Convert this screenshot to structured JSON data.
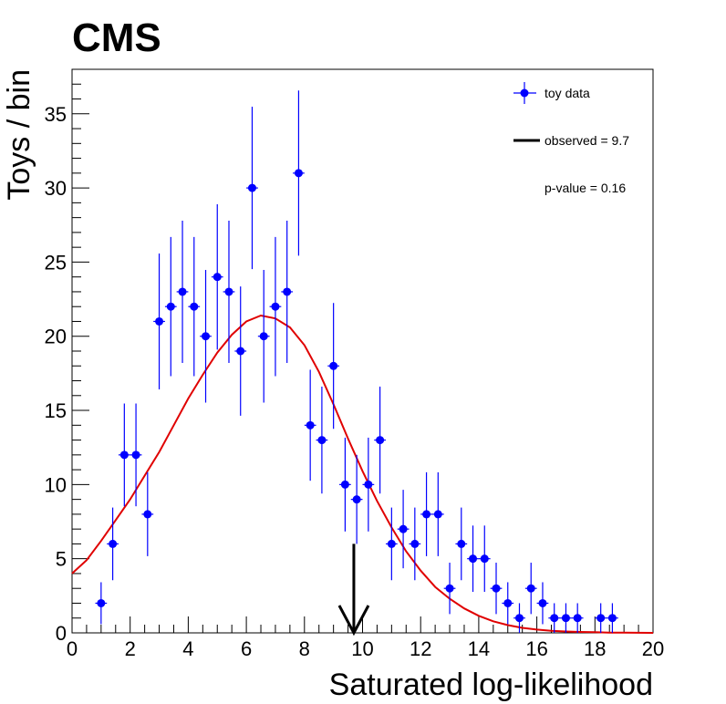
{
  "header": {
    "experiment_label": "CMS"
  },
  "legend": {
    "entries": [
      {
        "label": "toy data"
      },
      {
        "label": "observed = 9.7"
      },
      {
        "label": "p-value = 0.16"
      }
    ]
  },
  "colors": {
    "data": "#0000ff",
    "fit": "#e00000",
    "observed": "#000000",
    "axis": "#000000"
  },
  "chart_data": {
    "type": "scatter",
    "xlabel": "Saturated log-likelihood",
    "ylabel": "Toys / bin",
    "xlim": [
      0,
      20
    ],
    "ylim": [
      0,
      38
    ],
    "x_ticks": [
      0,
      2,
      4,
      6,
      8,
      10,
      12,
      14,
      16,
      18,
      20
    ],
    "y_ticks": [
      0,
      5,
      10,
      15,
      20,
      25,
      30,
      35
    ],
    "grid": false,
    "legend_position": "top-right",
    "series": [
      {
        "name": "toy data",
        "kind": "points-with-errors",
        "x": [
          1.0,
          1.4,
          1.8,
          2.2,
          2.6,
          3.0,
          3.4,
          3.8,
          4.2,
          4.6,
          5.0,
          5.4,
          5.8,
          6.2,
          6.6,
          7.0,
          7.4,
          7.8,
          8.2,
          8.6,
          9.0,
          9.4,
          9.8,
          10.2,
          10.6,
          11.0,
          11.4,
          11.8,
          12.2,
          12.6,
          13.0,
          13.4,
          13.8,
          14.2,
          14.6,
          15.0,
          15.4,
          15.8,
          16.2,
          16.6,
          17.0,
          17.4,
          18.2,
          18.6
        ],
        "y": [
          2,
          6,
          12,
          12,
          8,
          21,
          22,
          23,
          22,
          20,
          24,
          23,
          19,
          30,
          20,
          22,
          23,
          31,
          14,
          13,
          18,
          10,
          9,
          10,
          13,
          6,
          7,
          6,
          8,
          8,
          3,
          6,
          5,
          5,
          3,
          2,
          1,
          3,
          2,
          1,
          1,
          1,
          1,
          1
        ]
      },
      {
        "name": "fit",
        "kind": "curve",
        "x": [
          0,
          0.5,
          1,
          1.5,
          2,
          2.5,
          3,
          3.5,
          4,
          4.5,
          5,
          5.5,
          6,
          6.5,
          7,
          7.5,
          8,
          8.5,
          9,
          9.5,
          10,
          10.5,
          11,
          11.5,
          12,
          12.5,
          13,
          13.5,
          14,
          14.5,
          15,
          15.5,
          16,
          16.5,
          17,
          17.5,
          18,
          18.5,
          19,
          19.5,
          20
        ],
        "y": [
          4.0,
          4.9,
          6.2,
          7.6,
          9.0,
          10.6,
          12.2,
          14.0,
          15.8,
          17.4,
          18.9,
          20.1,
          21.0,
          21.4,
          21.2,
          20.6,
          19.4,
          17.6,
          15.4,
          13.1,
          10.9,
          8.9,
          7.1,
          5.5,
          4.2,
          3.1,
          2.3,
          1.65,
          1.15,
          0.78,
          0.52,
          0.34,
          0.22,
          0.14,
          0.09,
          0.06,
          0.04,
          0.02,
          0.01,
          0.005,
          0.0
        ]
      }
    ],
    "observed": {
      "x": 9.7,
      "arrow_top": 6
    }
  }
}
